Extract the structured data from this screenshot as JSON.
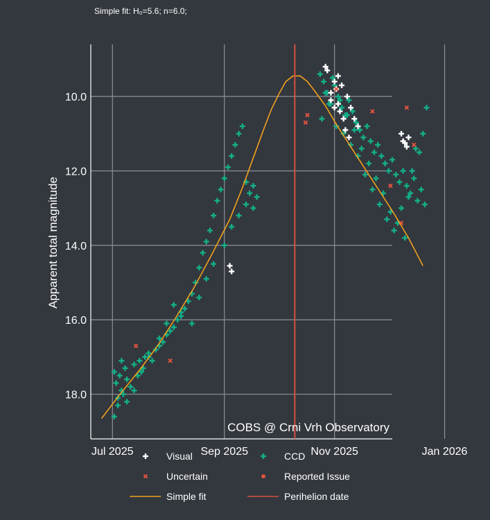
{
  "subtitle": "Simple fit: H₀=5.6; n=6.0;",
  "colors": {
    "background": "#33373e",
    "grid": "#8f9196",
    "ccd": "#13b089",
    "visual": "#ffffff",
    "uncertain": "#e0533f",
    "reported": "#e0533f",
    "fit": "#f0a01c",
    "perihelion": "#d7503e"
  },
  "chart_data": {
    "type": "scatter",
    "title": "",
    "subtitle": "Simple fit: H₀=5.6; n=6.0;",
    "xlabel": "",
    "ylabel": "Apparent total magnitude",
    "y_inverted": true,
    "ylim": [
      19.2,
      8.6
    ],
    "yticks": [
      10,
      12,
      14,
      16,
      18
    ],
    "ytick_labels": [
      "10.0",
      "12.0",
      "14.0",
      "16.0",
      "18.0"
    ],
    "xlim_days": [
      -12,
      155
    ],
    "x_ref_date": "2025-07-01",
    "xticks_days": [
      0,
      62,
      123,
      184
    ],
    "xtick_labels": [
      "Jul 2025",
      "Sep 2025",
      "Nov 2025",
      "Jan 2026"
    ],
    "annotation": "COBS @ Crni Vrh Observatory",
    "perihelion_day": 101,
    "fit": {
      "name": "Simple fit",
      "days": [
        -6,
        5,
        15,
        25,
        35,
        45,
        55,
        65,
        72,
        78,
        84,
        88,
        92,
        96,
        100,
        104,
        108,
        112,
        118,
        124,
        130,
        136,
        142,
        148,
        156,
        164,
        172
      ],
      "mags": [
        18.65,
        17.95,
        17.35,
        16.7,
        15.95,
        15.15,
        14.25,
        13.3,
        12.45,
        11.65,
        10.85,
        10.35,
        9.95,
        9.6,
        9.45,
        9.45,
        9.6,
        9.85,
        10.25,
        10.75,
        11.2,
        11.65,
        12.1,
        12.55,
        13.15,
        13.8,
        14.55
      ]
    },
    "series": [
      {
        "name": "Visual",
        "marker": "plus",
        "days": [
          65,
          66,
          118,
          119,
          121,
          121,
          123,
          123,
          124,
          125,
          125,
          126,
          127,
          128,
          129,
          130,
          131,
          132,
          134,
          136,
          160,
          161,
          162,
          163,
          164
        ],
        "mags": [
          14.55,
          14.7,
          9.2,
          9.3,
          9.9,
          10.1,
          9.6,
          10.3,
          9.8,
          10.2,
          9.45,
          10.4,
          9.7,
          10.6,
          10.9,
          10.0,
          11.1,
          10.3,
          10.6,
          10.8,
          11.0,
          11.2,
          11.25,
          11.35,
          11.1
        ]
      },
      {
        "name": "CCD",
        "marker": "plus",
        "days": [
          1,
          2,
          3,
          4,
          5,
          6,
          7,
          8,
          10,
          12,
          14,
          15,
          17,
          18,
          20,
          22,
          24,
          26,
          28,
          30,
          32,
          34,
          36,
          38,
          40,
          42,
          44,
          46,
          48,
          50,
          52,
          54,
          56,
          58,
          60,
          62,
          64,
          66,
          68,
          70,
          72,
          74,
          76,
          78,
          80,
          1,
          3,
          5,
          8,
          12,
          16,
          20,
          26,
          30,
          34,
          38,
          44,
          48,
          52,
          56,
          62,
          66,
          70,
          74,
          78,
          115,
          117,
          119,
          121,
          123,
          125,
          127,
          129,
          131,
          133,
          135,
          137,
          139,
          141,
          143,
          145,
          147,
          149,
          151,
          153,
          155,
          157,
          159,
          161,
          163,
          165,
          167,
          169,
          171,
          173,
          116,
          120,
          124,
          128,
          132,
          136,
          140,
          144,
          148,
          152,
          156,
          160,
          164,
          168,
          172,
          118,
          122,
          126,
          130,
          134,
          138,
          142,
          146,
          150,
          154,
          158,
          162,
          166,
          170,
          174
        ],
        "mags": [
          17.4,
          17.7,
          18.1,
          17.5,
          17.9,
          18.0,
          17.3,
          17.6,
          17.8,
          17.2,
          17.5,
          17.1,
          17.3,
          17.0,
          16.9,
          17.1,
          16.8,
          16.7,
          16.6,
          16.4,
          16.3,
          16.2,
          16.0,
          15.9,
          15.7,
          15.5,
          15.3,
          15.0,
          14.6,
          14.2,
          13.9,
          13.6,
          13.2,
          12.8,
          12.5,
          12.2,
          11.9,
          11.6,
          11.3,
          11.0,
          10.8,
          12.3,
          12.6,
          13.0,
          12.7,
          18.6,
          18.3,
          17.1,
          18.2,
          17.9,
          17.4,
          17.0,
          16.5,
          16.1,
          15.6,
          15.8,
          16.1,
          15.4,
          14.9,
          14.5,
          14.0,
          13.5,
          13.2,
          12.9,
          12.4,
          9.4,
          9.6,
          9.9,
          10.2,
          9.7,
          10.0,
          10.3,
          10.5,
          10.1,
          10.4,
          10.7,
          10.9,
          11.1,
          10.8,
          11.2,
          11.5,
          11.3,
          11.6,
          11.8,
          12.0,
          11.7,
          12.1,
          12.3,
          12.0,
          12.4,
          12.6,
          12.2,
          12.8,
          12.5,
          12.9,
          10.6,
          10.2,
          10.8,
          11.0,
          11.3,
          11.6,
          12.1,
          12.5,
          12.9,
          13.3,
          13.6,
          13.0,
          12.7,
          11.4,
          11.0,
          9.9,
          9.5,
          10.1,
          10.5,
          10.9,
          11.4,
          11.8,
          12.2,
          12.6,
          13.1,
          13.4,
          13.8,
          12.0,
          11.5,
          10.3
        ]
      },
      {
        "name": "Uncertain",
        "marker": "x",
        "days": [
          13,
          32,
          107,
          108,
          124,
          144,
          154,
          160,
          163,
          167
        ],
        "mags": [
          16.7,
          17.1,
          10.7,
          10.5,
          9.8,
          10.4,
          12.4,
          13.4,
          10.3,
          11.3
        ]
      },
      {
        "name": "Reported Issue",
        "marker": "dot",
        "days": [],
        "mags": []
      }
    ],
    "extra_legend": [
      "Simple fit",
      "Perihelion date"
    ],
    "legend_placement": "bottom"
  }
}
